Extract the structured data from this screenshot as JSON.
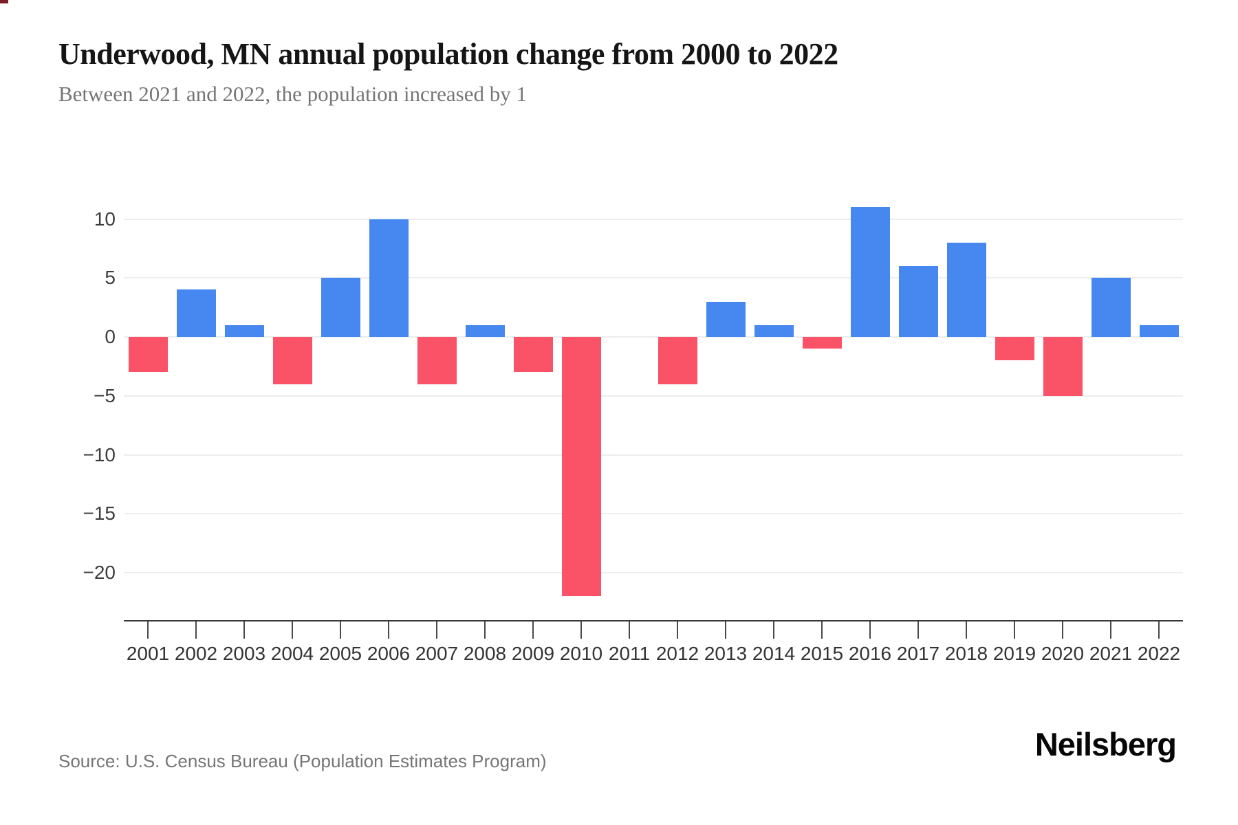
{
  "header": {
    "title": "Underwood, MN annual population change from 2000 to 2022",
    "subtitle": "Between 2021 and 2022, the population increased by 1"
  },
  "chart_data": {
    "type": "bar",
    "title": "Underwood, MN annual population change from 2000 to 2022",
    "categories": [
      "2001",
      "2002",
      "2003",
      "2004",
      "2005",
      "2006",
      "2007",
      "2008",
      "2009",
      "2010",
      "2011",
      "2012",
      "2013",
      "2014",
      "2015",
      "2016",
      "2017",
      "2018",
      "2019",
      "2020",
      "2021",
      "2022"
    ],
    "values": [
      -3,
      4,
      1,
      -4,
      5,
      10,
      -4,
      1,
      -3,
      -22,
      0,
      -4,
      3,
      1,
      -1,
      11,
      6,
      8,
      -2,
      -5,
      5,
      1
    ],
    "yticks": [
      10,
      5,
      0,
      -5,
      -10,
      -15,
      -20
    ],
    "ylim": [
      -24,
      12
    ],
    "xlabel": "",
    "ylabel": "",
    "grid": true,
    "legend_position": "none",
    "positive_color": "#4687f0",
    "negative_color": "#fa5266"
  },
  "footer": {
    "source": "Source: U.S. Census Bureau (Population Estimates Program)",
    "brand": "Neilsberg"
  }
}
